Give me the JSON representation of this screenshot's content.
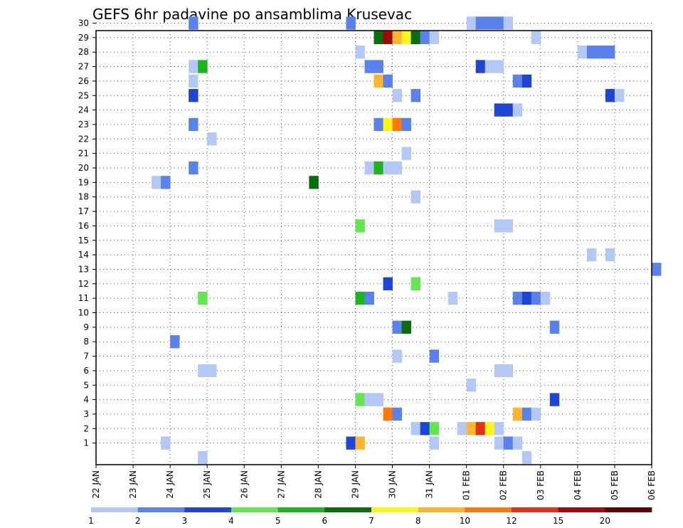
{
  "chart_data": {
    "type": "heatmap",
    "title": "GEFS 6hr padavine po ansamblima Krusevac",
    "xlabel": "",
    "ylabel": "",
    "x_tick_labels": [
      "22 JAN",
      "23 JAN",
      "24 JAN",
      "25 JAN",
      "26 JAN",
      "27 JAN",
      "28 JAN",
      "29 JAN",
      "30 JAN",
      "31 JAN",
      "01 FEB",
      "02 FEB",
      "03 FEB",
      "04 FEB",
      "05 FEB",
      "06 FEB"
    ],
    "x_range_days": [
      0,
      15
    ],
    "x_step_days": 0.25,
    "y_members": [
      "1",
      "2",
      "3",
      "4",
      "5",
      "6",
      "7",
      "8",
      "9",
      "10",
      "11",
      "12",
      "13",
      "14",
      "15",
      "16",
      "17",
      "18",
      "19",
      "20",
      "21",
      "22",
      "23",
      "24",
      "25",
      "26",
      "27",
      "28",
      "29",
      "30"
    ],
    "grid": true,
    "legend": {
      "placement": "bottom",
      "levels": [
        "1",
        "2",
        "3",
        "4",
        "5",
        "6",
        "7",
        "8",
        "10",
        "12",
        "15",
        "20"
      ],
      "colors": [
        "#b4c8f5",
        "#5a82eb",
        "#1e46d2",
        "#64e650",
        "#1eb41e",
        "#0a6e0a",
        "#fff51e",
        "#ffb432",
        "#ff780a",
        "#e13214",
        "#a00a0a",
        "#640000"
      ]
    },
    "cells": [
      {
        "m": 30,
        "t": 2.5,
        "c": 1
      },
      {
        "m": 30,
        "t": 6.75,
        "c": 1
      },
      {
        "m": 30,
        "t": 10,
        "c": 0
      },
      {
        "m": 30,
        "t": 10.25,
        "c": 1
      },
      {
        "m": 30,
        "t": 10.5,
        "c": 1
      },
      {
        "m": 30,
        "t": 10.75,
        "c": 1
      },
      {
        "m": 30,
        "t": 11,
        "c": 0
      },
      {
        "m": 29,
        "t": 7.5,
        "c": 5
      },
      {
        "m": 29,
        "t": 7.75,
        "c": 10
      },
      {
        "m": 29,
        "t": 8,
        "c": 7
      },
      {
        "m": 29,
        "t": 8.25,
        "c": 6
      },
      {
        "m": 29,
        "t": 8.5,
        "c": 5
      },
      {
        "m": 29,
        "t": 8.75,
        "c": 1
      },
      {
        "m": 29,
        "t": 9,
        "c": 0
      },
      {
        "m": 29,
        "t": 11.75,
        "c": 0
      },
      {
        "m": 28,
        "t": 7,
        "c": 0
      },
      {
        "m": 28,
        "t": 13,
        "c": 0
      },
      {
        "m": 28,
        "t": 13.25,
        "c": 1
      },
      {
        "m": 28,
        "t": 13.5,
        "c": 1
      },
      {
        "m": 28,
        "t": 13.75,
        "c": 1
      },
      {
        "m": 27,
        "t": 2.5,
        "c": 0
      },
      {
        "m": 27,
        "t": 2.75,
        "c": 4
      },
      {
        "m": 27,
        "t": 7.25,
        "c": 1
      },
      {
        "m": 27,
        "t": 7.5,
        "c": 1
      },
      {
        "m": 27,
        "t": 10.25,
        "c": 2
      },
      {
        "m": 27,
        "t": 10.5,
        "c": 0
      },
      {
        "m": 27,
        "t": 10.75,
        "c": 0
      },
      {
        "m": 26,
        "t": 2.5,
        "c": 0
      },
      {
        "m": 26,
        "t": 7.5,
        "c": 7
      },
      {
        "m": 26,
        "t": 7.75,
        "c": 1
      },
      {
        "m": 26,
        "t": 11.25,
        "c": 1
      },
      {
        "m": 26,
        "t": 11.5,
        "c": 2
      },
      {
        "m": 25,
        "t": 2.5,
        "c": 2
      },
      {
        "m": 25,
        "t": 8,
        "c": 0
      },
      {
        "m": 25,
        "t": 8.5,
        "c": 1
      },
      {
        "m": 25,
        "t": 13.75,
        "c": 2
      },
      {
        "m": 25,
        "t": 14,
        "c": 0
      },
      {
        "m": 24,
        "t": 10.75,
        "c": 2
      },
      {
        "m": 24,
        "t": 11,
        "c": 2
      },
      {
        "m": 24,
        "t": 11.25,
        "c": 0
      },
      {
        "m": 23,
        "t": 2.5,
        "c": 1
      },
      {
        "m": 23,
        "t": 7.5,
        "c": 1
      },
      {
        "m": 23,
        "t": 7.75,
        "c": 6
      },
      {
        "m": 23,
        "t": 8,
        "c": 8
      },
      {
        "m": 23,
        "t": 8.25,
        "c": 1
      },
      {
        "m": 22,
        "t": 3,
        "c": 0
      },
      {
        "m": 21,
        "t": 8.25,
        "c": 0
      },
      {
        "m": 20,
        "t": 2.5,
        "c": 1
      },
      {
        "m": 20,
        "t": 7.25,
        "c": 0
      },
      {
        "m": 20,
        "t": 7.5,
        "c": 4
      },
      {
        "m": 20,
        "t": 7.75,
        "c": 0
      },
      {
        "m": 20,
        "t": 8,
        "c": 0
      },
      {
        "m": 19,
        "t": 1.5,
        "c": 0
      },
      {
        "m": 19,
        "t": 1.75,
        "c": 1
      },
      {
        "m": 19,
        "t": 5.75,
        "c": 5
      },
      {
        "m": 18,
        "t": 8.5,
        "c": 0
      },
      {
        "m": 16,
        "t": 7,
        "c": 3
      },
      {
        "m": 16,
        "t": 10.75,
        "c": 0
      },
      {
        "m": 16,
        "t": 11,
        "c": 0
      },
      {
        "m": 14,
        "t": 13.25,
        "c": 0
      },
      {
        "m": 14,
        "t": 13.75,
        "c": 0
      },
      {
        "m": 13,
        "t": 15,
        "c": 1
      },
      {
        "m": 12,
        "t": 7.75,
        "c": 2
      },
      {
        "m": 12,
        "t": 8.5,
        "c": 3
      },
      {
        "m": 11,
        "t": 2.75,
        "c": 3
      },
      {
        "m": 11,
        "t": 7,
        "c": 4
      },
      {
        "m": 11,
        "t": 7.25,
        "c": 1
      },
      {
        "m": 11,
        "t": 9.5,
        "c": 0
      },
      {
        "m": 11,
        "t": 11.25,
        "c": 1
      },
      {
        "m": 11,
        "t": 11.5,
        "c": 2
      },
      {
        "m": 11,
        "t": 11.75,
        "c": 1
      },
      {
        "m": 11,
        "t": 12,
        "c": 0
      },
      {
        "m": 9,
        "t": 8,
        "c": 1
      },
      {
        "m": 9,
        "t": 8.25,
        "c": 5
      },
      {
        "m": 9,
        "t": 12.25,
        "c": 1
      },
      {
        "m": 8,
        "t": 2,
        "c": 1
      },
      {
        "m": 7,
        "t": 8,
        "c": 0
      },
      {
        "m": 7,
        "t": 9,
        "c": 1
      },
      {
        "m": 6,
        "t": 2.75,
        "c": 0
      },
      {
        "m": 6,
        "t": 3,
        "c": 0
      },
      {
        "m": 6,
        "t": 10.75,
        "c": 0
      },
      {
        "m": 6,
        "t": 11,
        "c": 0
      },
      {
        "m": 5,
        "t": 10,
        "c": 0
      },
      {
        "m": 4,
        "t": 7,
        "c": 3
      },
      {
        "m": 4,
        "t": 7.25,
        "c": 0
      },
      {
        "m": 4,
        "t": 7.5,
        "c": 0
      },
      {
        "m": 4,
        "t": 12.25,
        "c": 2
      },
      {
        "m": 3,
        "t": 7.75,
        "c": 8
      },
      {
        "m": 3,
        "t": 8,
        "c": 1
      },
      {
        "m": 3,
        "t": 11.25,
        "c": 7
      },
      {
        "m": 3,
        "t": 11.5,
        "c": 1
      },
      {
        "m": 3,
        "t": 11.75,
        "c": 0
      },
      {
        "m": 2,
        "t": 8.5,
        "c": 0
      },
      {
        "m": 2,
        "t": 8.75,
        "c": 2
      },
      {
        "m": 2,
        "t": 9,
        "c": 3
      },
      {
        "m": 2,
        "t": 9.75,
        "c": 0
      },
      {
        "m": 2,
        "t": 10,
        "c": 7
      },
      {
        "m": 2,
        "t": 10.25,
        "c": 9
      },
      {
        "m": 2,
        "t": 10.5,
        "c": 6
      },
      {
        "m": 2,
        "t": 10.75,
        "c": 0
      },
      {
        "m": 1,
        "t": 1.75,
        "c": 0
      },
      {
        "m": 1,
        "t": 6.75,
        "c": 2
      },
      {
        "m": 1,
        "t": 7,
        "c": 7
      },
      {
        "m": 1,
        "t": 9,
        "c": 0
      },
      {
        "m": 1,
        "t": 10.75,
        "c": 0
      },
      {
        "m": 1,
        "t": 11,
        "c": 1
      },
      {
        "m": 1,
        "t": 11.25,
        "c": 0
      },
      {
        "m": 0,
        "t": 2.75,
        "c": 0
      },
      {
        "m": 0,
        "t": 11.5,
        "c": 0
      }
    ]
  }
}
